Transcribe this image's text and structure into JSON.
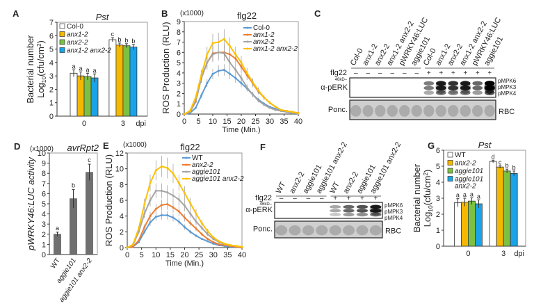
{
  "colors": {
    "white": "#ffffff",
    "yellow": "#f5b800",
    "green": "#7dc142",
    "blue": "#1aa3e8",
    "line_blue": "#5b9bd5",
    "line_orange": "#ed7d31",
    "line_gray": "#a5a5a5",
    "line_yellow": "#ffc000",
    "bar_gray": "#707070"
  },
  "chart_data": [
    {
      "panel": "A",
      "type": "bar",
      "title": "Pst",
      "ylabel_line1": "Bacterial number",
      "ylabel_line2": "Log10(cfu/cm2)",
      "xunit": "dpi",
      "categories": [
        "0",
        "3"
      ],
      "ylim": [
        0,
        7
      ],
      "yticks": [
        0,
        1,
        2,
        3,
        4,
        5,
        6,
        7
      ],
      "series": [
        {
          "name": "Col-0",
          "color": "#ffffff",
          "values": [
            3.2,
            5.7
          ],
          "errors": [
            0.25,
            0.15
          ],
          "letters": [
            "a",
            "c"
          ]
        },
        {
          "name": "anx1-2",
          "color": "#f5b800",
          "values": [
            3.0,
            5.3
          ],
          "errors": [
            0.3,
            0.15
          ],
          "letters": [
            "a",
            "b"
          ]
        },
        {
          "name": "anx2-2",
          "color": "#7dc142",
          "values": [
            2.95,
            5.25
          ],
          "errors": [
            0.25,
            0.15
          ],
          "letters": [
            "a",
            "b"
          ]
        },
        {
          "name": "anx1-2 anx2-2",
          "color": "#1aa3e8",
          "values": [
            2.85,
            5.15
          ],
          "errors": [
            0.3,
            0.2
          ],
          "letters": [
            "a",
            "b"
          ]
        }
      ]
    },
    {
      "panel": "B",
      "type": "line",
      "title": "flg22",
      "yscale_note": "(x1000)",
      "ylabel": "ROS Production (RLU)",
      "xlabel": "Time (Min.)",
      "xlim": [
        0,
        40
      ],
      "ylim": [
        0,
        9
      ],
      "xticks": [
        0,
        5,
        10,
        15,
        20,
        25,
        30,
        35,
        40
      ],
      "yticks": [
        0,
        1,
        2,
        3,
        4,
        5,
        6,
        7,
        8,
        9
      ],
      "x": [
        0,
        2,
        4,
        6,
        8,
        10,
        12,
        14,
        16,
        18,
        20,
        22,
        24,
        26,
        28,
        30,
        32,
        34,
        36,
        38,
        40
      ],
      "series": [
        {
          "name": "Col-0",
          "color": "#5b9bd5",
          "values": [
            0,
            0.1,
            0.6,
            1.8,
            3.0,
            3.9,
            4.2,
            4.3,
            3.9,
            3.5,
            3.0,
            2.5,
            1.9,
            1.4,
            1.0,
            0.7,
            0.5,
            0.3,
            0.2,
            0.1,
            0.05
          ]
        },
        {
          "name": "anx1-2",
          "color": "#ed7d31",
          "values": [
            0,
            0.2,
            1.2,
            3.5,
            5.0,
            5.9,
            6.0,
            6.0,
            5.8,
            5.4,
            4.6,
            3.8,
            3.0,
            2.2,
            1.6,
            1.1,
            0.7,
            0.4,
            0.3,
            0.2,
            0.1
          ]
        },
        {
          "name": "anx2-2",
          "color": "#a5a5a5",
          "values": [
            0,
            0.2,
            1.3,
            3.5,
            5.0,
            5.8,
            6.0,
            5.9,
            5.0,
            4.3,
            3.5,
            2.6,
            1.9,
            1.3,
            0.9,
            0.6,
            0.4,
            0.3,
            0.2,
            0.1,
            0.05
          ]
        },
        {
          "name": "anx1-2 anx2-2",
          "color": "#ffc000",
          "values": [
            0,
            0.3,
            1.6,
            3.8,
            5.8,
            6.9,
            7.0,
            7.3,
            6.6,
            5.8,
            5.0,
            4.0,
            3.1,
            2.3,
            1.6,
            1.1,
            0.7,
            0.4,
            0.3,
            0.2,
            0.1
          ]
        }
      ]
    },
    {
      "panel": "D",
      "type": "bar",
      "title": "avrRpt2",
      "yscale_note": "(x1000)",
      "ylabel": "pWRKY46:LUC activity",
      "categories": [
        "WT",
        "aggie101",
        "aggie101 anx2-2"
      ],
      "ylim": [
        0,
        10
      ],
      "yticks": [
        0,
        1,
        2,
        3,
        4,
        5,
        6,
        7,
        8,
        9,
        10
      ],
      "values": [
        2.0,
        5.5,
        8.1
      ],
      "errors": [
        0.2,
        0.9,
        0.8
      ],
      "letters": [
        "a",
        "b",
        "c"
      ],
      "color": "#707070"
    },
    {
      "panel": "E",
      "type": "line",
      "title": "flg22",
      "yscale_note": "(x1000)",
      "ylabel": "ROS Production (RLU)",
      "xlabel": "Time (Min.)",
      "xlim": [
        0,
        40
      ],
      "ylim": [
        0,
        12
      ],
      "xticks": [
        0,
        5,
        10,
        15,
        20,
        25,
        30,
        35,
        40
      ],
      "yticks": [
        0,
        2,
        4,
        6,
        8,
        10,
        12
      ],
      "x": [
        0,
        2,
        4,
        6,
        8,
        10,
        12,
        14,
        16,
        18,
        20,
        22,
        24,
        26,
        28,
        30,
        32,
        34,
        36,
        38,
        40
      ],
      "series": [
        {
          "name": "WT",
          "color": "#5b9bd5",
          "values": [
            0,
            0.1,
            0.7,
            2.0,
            3.2,
            3.9,
            4.1,
            4.1,
            3.8,
            3.3,
            2.6,
            2.0,
            1.5,
            1.1,
            0.8,
            0.5,
            0.3,
            0.2,
            0.1,
            0.05,
            0
          ]
        },
        {
          "name": "anx2-2",
          "color": "#ed7d31",
          "values": [
            0,
            0.1,
            0.9,
            2.6,
            4.0,
            4.9,
            5.4,
            5.5,
            5.1,
            4.6,
            3.8,
            3.1,
            2.4,
            1.7,
            1.1,
            0.7,
            0.4,
            0.3,
            0.2,
            0.1,
            0
          ]
        },
        {
          "name": "aggie101",
          "color": "#a5a5a5",
          "values": [
            0,
            0.3,
            2.0,
            4.3,
            6.0,
            7.2,
            7.2,
            7.0,
            6.6,
            6.1,
            5.3,
            4.3,
            3.3,
            2.5,
            1.7,
            1.1,
            0.7,
            0.4,
            0.3,
            0.2,
            0.1
          ]
        },
        {
          "name": "aggie101 anx2-2",
          "color": "#ffc000",
          "values": [
            0,
            0.4,
            2.4,
            5.5,
            8.2,
            9.8,
            10.3,
            10.1,
            9.4,
            8.2,
            6.9,
            5.6,
            4.3,
            3.1,
            2.1,
            1.3,
            0.8,
            0.5,
            0.3,
            0.2,
            0.1
          ]
        }
      ]
    },
    {
      "panel": "G",
      "type": "bar",
      "title": "Pst",
      "ylabel_line1": "Bacterial number",
      "ylabel_line2": "Log10(cfu/cm2)",
      "xunit": "dpi",
      "categories": [
        "0",
        "3"
      ],
      "ylim": [
        0,
        6
      ],
      "yticks": [
        0,
        1,
        2,
        3,
        4,
        5,
        6
      ],
      "series": [
        {
          "name": "WT",
          "color": "#ffffff",
          "values": [
            2.72,
            5.3
          ],
          "errors": [
            0.25,
            0.08
          ],
          "letters": [
            "a",
            "d"
          ]
        },
        {
          "name": "anx2-2",
          "color": "#f5b800",
          "values": [
            2.75,
            4.95
          ],
          "errors": [
            0.25,
            0.08
          ],
          "letters": [
            "a",
            "c"
          ]
        },
        {
          "name": "aggie101",
          "color": "#7dc142",
          "values": [
            2.82,
            4.7
          ],
          "errors": [
            0.2,
            0.12
          ],
          "letters": [
            "a",
            "b"
          ]
        },
        {
          "name": "aggie101 anx2-2",
          "color": "#1aa3e8",
          "values": [
            2.65,
            4.55
          ],
          "errors": [
            0.25,
            0.15
          ],
          "letters": [
            "a",
            "b"
          ]
        }
      ]
    }
  ],
  "blots": [
    {
      "panel": "C",
      "treatment_label": "flg22",
      "marker": "46kD",
      "antibody": "α-pERK",
      "loading_label": "Ponc.",
      "loading_band": "RBC",
      "bands": [
        "pMPK6",
        "pMPK3",
        "pMPK4"
      ],
      "lanes": [
        "Col-0",
        "anx1-2",
        "anx2-2",
        "anx1-2 anx2-2",
        "pWRKY46:LUC",
        "aggie101",
        "Col-0",
        "anx1-2",
        "anx2-2",
        "anx1-2 anx2-2",
        "pWRKY46:LUC",
        "aggie101"
      ],
      "treatment": [
        "–",
        "–",
        "–",
        "–",
        "–",
        "–",
        "+",
        "+",
        "+",
        "+",
        "+",
        "+"
      ],
      "band_intensity": [
        0,
        0,
        0,
        0,
        0,
        0,
        0.6,
        1.0,
        0.9,
        1.0,
        0.7,
        1.2
      ]
    },
    {
      "panel": "F",
      "treatment_label": "flg22",
      "marker": "46kD",
      "antibody": "α-pERK",
      "loading_label": "Ponc.",
      "loading_band": "RBC",
      "bands": [
        "pMPK6",
        "pMPK3",
        "pMPK4"
      ],
      "lanes": [
        "WT",
        "anx2-2",
        "aggie101",
        "aggie101 anx2-2",
        "WT",
        "anx2-2",
        "aggie101",
        "aggie101 anx2-2"
      ],
      "treatment": [
        "–",
        "–",
        "–",
        "–",
        "+",
        "+",
        "+",
        "+"
      ],
      "band_intensity": [
        0,
        0,
        0,
        0,
        0.4,
        0.7,
        0.8,
        1.0
      ]
    }
  ],
  "panel_letters": [
    "A",
    "B",
    "C",
    "D",
    "E",
    "F",
    "G"
  ]
}
